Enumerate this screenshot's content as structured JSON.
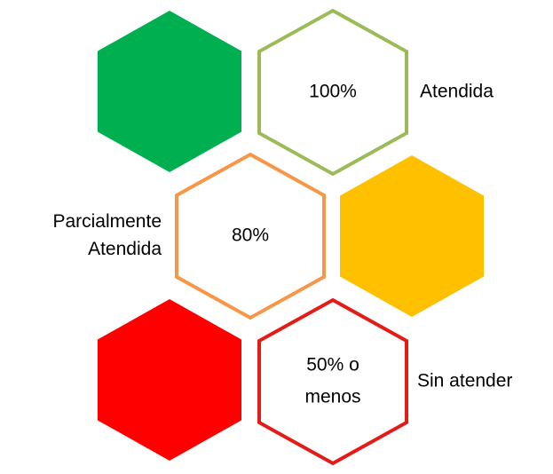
{
  "items": [
    {
      "label_lines": [
        "Atendida"
      ],
      "value_lines": [
        "100%"
      ],
      "fill_color": "#00b050",
      "outline_color": "#9bbb59"
    },
    {
      "label_lines": [
        "Parcialmente",
        "Atendida"
      ],
      "value_lines": [
        "80%"
      ],
      "fill_color": "#ffc000",
      "outline_color": "#f79646"
    },
    {
      "label_lines": [
        "Sin atender"
      ],
      "value_lines": [
        "50% o",
        "menos"
      ],
      "fill_color": "#ff0000",
      "outline_color": "#e41b17"
    }
  ]
}
